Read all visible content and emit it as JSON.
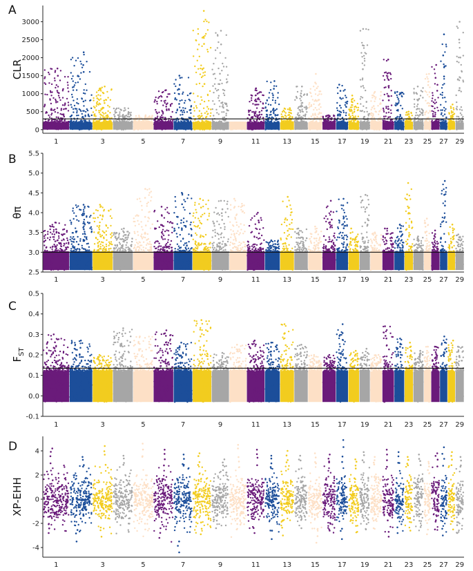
{
  "colors": {
    "purple": "#6a1b7a",
    "blue": "#1c4e9a",
    "yellow": "#f2cc1f",
    "gray": "#a6a6a6",
    "peach": "#fde0c6"
  },
  "chromosomes": [
    "1",
    "2",
    "3",
    "4",
    "5",
    "6",
    "7",
    "8",
    "9",
    "10",
    "11",
    "12",
    "13",
    "14",
    "15",
    "16",
    "17",
    "18",
    "19",
    "20",
    "21",
    "22",
    "23",
    "24",
    "25",
    "26",
    "27",
    "28",
    "29"
  ],
  "chart_data": [
    {
      "panel": "A",
      "type": "scatter",
      "ylabel": "CLR",
      "ylim": [
        -100,
        3450
      ],
      "yticks": [
        "0",
        "500",
        "1000",
        "1500",
        "2000",
        "2500",
        "3000"
      ],
      "xtick_labels": [
        "1",
        "3",
        "5",
        "7",
        "9",
        "11",
        "13",
        "15",
        "17",
        "19",
        "21",
        "23",
        "25",
        "27",
        "29"
      ],
      "threshold": 300,
      "base_range": [
        0,
        200
      ],
      "chrom_peaks": [
        1700,
        2150,
        1200,
        600,
        400,
        1100,
        1500,
        3300,
        2750,
        200,
        1150,
        1350,
        600,
        1200,
        1550,
        400,
        1250,
        950,
        2800,
        1050,
        1950,
        1050,
        500,
        1200,
        1550,
        1800,
        2650,
        700,
        3000
      ]
    },
    {
      "panel": "B",
      "type": "scatter",
      "ylabel": "θπ",
      "ylim": [
        2.5,
        5.5
      ],
      "yticks": [
        "2.5",
        "3.0",
        "3.5",
        "4.0",
        "4.5",
        "5.0",
        "5.5"
      ],
      "xtick_labels": [
        "1",
        "3",
        "5",
        "7",
        "9",
        "11",
        "13",
        "15",
        "17",
        "19",
        "21",
        "23",
        "25",
        "27",
        "29"
      ],
      "threshold": 3.0,
      "base_range": [
        2.55,
        3.0
      ],
      "chrom_peaks": [
        3.75,
        4.2,
        4.2,
        3.6,
        4.6,
        4.15,
        4.5,
        4.35,
        4.3,
        4.35,
        4.0,
        3.3,
        4.4,
        3.6,
        3.65,
        4.3,
        4.35,
        3.6,
        4.45,
        3.5,
        3.6,
        3.7,
        4.75,
        3.4,
        3.85,
        3.55,
        4.8,
        3.7,
        3.45
      ]
    },
    {
      "panel": "C",
      "type": "scatter",
      "ylabel": "FST",
      "ylim": [
        -0.1,
        0.5
      ],
      "yticks": [
        "-0.1",
        "0.0",
        "0.1",
        "0.2",
        "0.3",
        "0.4",
        "0.5"
      ],
      "xtick_labels": [
        "1",
        "3",
        "5",
        "7",
        "9",
        "11",
        "13",
        "15",
        "17",
        "19",
        "21",
        "23",
        "25",
        "27",
        "29"
      ],
      "threshold": 0.135,
      "base_range": [
        -0.03,
        0.12
      ],
      "chrom_peaks": [
        0.3,
        0.27,
        0.2,
        0.33,
        0.29,
        0.32,
        0.26,
        0.37,
        0.21,
        0.25,
        0.27,
        0.26,
        0.35,
        0.25,
        0.2,
        0.2,
        0.35,
        0.22,
        0.23,
        0.2,
        0.34,
        0.28,
        0.26,
        0.22,
        0.24,
        0.24,
        0.29,
        0.27,
        0.24
      ]
    },
    {
      "panel": "D",
      "type": "scatter",
      "ylabel": "XP-EHH",
      "ylim": [
        -4.8,
        5.2
      ],
      "yticks": [
        "-4",
        "-2",
        "0",
        "2",
        "4"
      ],
      "xtick_labels": [
        "1",
        "3",
        "5",
        "7",
        "9",
        "11",
        "13",
        "15",
        "17",
        "19",
        "21",
        "23",
        "25",
        "27",
        "29"
      ],
      "threshold": null,
      "base_range": [
        -1.2,
        1.2
      ],
      "chrom_peaks": [
        4.2,
        3.5,
        4.4,
        3.6,
        4.6,
        4.1,
        3.7,
        3.8,
        3.3,
        4.5,
        4.1,
        3.6,
        4.0,
        3.6,
        3.8,
        3.7,
        4.9,
        3.3,
        3.9,
        3.5,
        4.1,
        3.9,
        3.5,
        3.7,
        3.1,
        3.8,
        4.3,
        3.9,
        3.5
      ],
      "chrom_troughs": [
        -2.8,
        -3.5,
        -3.1,
        -2.7,
        -2.5,
        -3.2,
        -4.4,
        -2.9,
        -2.4,
        -2.5,
        -2.8,
        -3.3,
        -3.0,
        -2.4,
        -3.6,
        -2.6,
        -3.3,
        -2.7,
        -2.5,
        -2.4,
        -3.1,
        -2.8,
        -2.6,
        -2.3,
        -2.9,
        -2.5,
        -3.0,
        -2.5,
        -2.8
      ]
    }
  ]
}
